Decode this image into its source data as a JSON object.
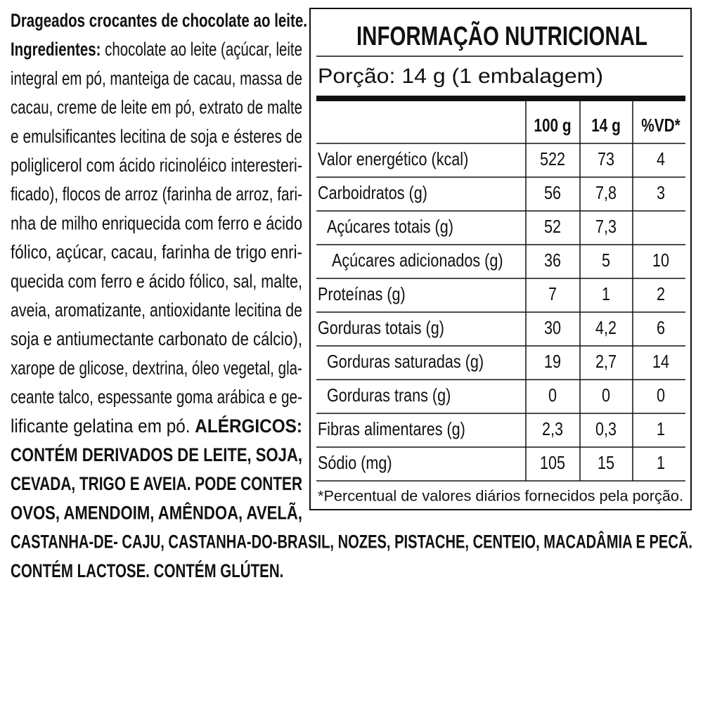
{
  "ingredients": {
    "lines": [
      {
        "segments": [
          {
            "text": "Drageados crocantes de chocolate ao leite.",
            "bold": true
          }
        ]
      },
      {
        "segments": [
          {
            "text": "Ingredientes:",
            "bold": true
          },
          {
            "text": " chocolate ao leite (açúcar, leite",
            "bold": false
          }
        ]
      },
      {
        "segments": [
          {
            "text": "integral em pó, manteiga de cacau, massa de",
            "bold": false
          }
        ]
      },
      {
        "segments": [
          {
            "text": "cacau, creme de leite em pó, extrato de malte",
            "bold": false
          }
        ]
      },
      {
        "segments": [
          {
            "text": "e emulsificantes lecitina de soja e ésteres de",
            "bold": false
          }
        ]
      },
      {
        "segments": [
          {
            "text": "poliglicerol com ácido ricinoléico interesteri-",
            "bold": false
          }
        ]
      },
      {
        "segments": [
          {
            "text": "ficado), flocos de arroz (farinha de arroz, fari-",
            "bold": false
          }
        ]
      },
      {
        "segments": [
          {
            "text": "nha de milho enriquecida com ferro e ácido",
            "bold": false
          }
        ]
      },
      {
        "segments": [
          {
            "text": "fólico, açúcar, cacau, farinha de trigo enri-",
            "bold": false
          }
        ]
      },
      {
        "segments": [
          {
            "text": "quecida com ferro e ácido fólico, sal, malte,",
            "bold": false
          }
        ]
      },
      {
        "segments": [
          {
            "text": "aveia, aromatizante, antioxidante lecitina de",
            "bold": false
          }
        ]
      },
      {
        "segments": [
          {
            "text": "soja e antiumectante carbonato de cálcio),",
            "bold": false
          }
        ]
      },
      {
        "segments": [
          {
            "text": "xarope de glicose, dextrina, óleo vegetal, gla-",
            "bold": false
          }
        ]
      },
      {
        "segments": [
          {
            "text": "ceante talco, espessante goma arábica e ge-",
            "bold": false
          }
        ]
      },
      {
        "segments": [
          {
            "text": "lificante gelatina em pó. ",
            "bold": false
          },
          {
            "text": "ALÉRGICOS:",
            "bold": true
          }
        ]
      },
      {
        "segments": [
          {
            "text": "CONTÉM DERIVADOS DE LEITE, SOJA,",
            "bold": true
          }
        ]
      },
      {
        "segments": [
          {
            "text": "CEVADA, TRIGO E AVEIA. PODE CONTER",
            "bold": true
          }
        ]
      },
      {
        "segments": [
          {
            "text": "OVOS, AMENDOIM, AMÊNDOA, AVELÃ,",
            "bold": true
          }
        ]
      },
      {
        "segments": [
          {
            "text": "CASTANHA-DE- CAJU, CASTANHA-DO-BRASIL, NOZES, PISTACHE, CENTEIO, MACADÂMIA E PECÃ.",
            "bold": true
          }
        ]
      },
      {
        "segments": [
          {
            "text": "CONTÉM LACTOSE. CONTÉM GLÚTEN.",
            "bold": true
          }
        ]
      }
    ]
  },
  "table": {
    "title": "INFORMAÇÃO NUTRICIONAL",
    "portion": "Porção: 14 g (1 embalagem)",
    "header": [
      "100 g",
      "14 g",
      "%VD*"
    ],
    "rows": [
      {
        "label": "Valor energético (kcal)",
        "level": 0,
        "values": [
          "522",
          "73",
          "4"
        ]
      },
      {
        "label": "Carboidratos (g)",
        "level": 0,
        "values": [
          "56",
          "7,8",
          "3"
        ]
      },
      {
        "label": "Açúcares totais (g)",
        "level": 1,
        "values": [
          "52",
          "7,3",
          null
        ]
      },
      {
        "label": "Açúcares adicionados (g)",
        "level": 2,
        "values": [
          "36",
          "5",
          "10"
        ]
      },
      {
        "label": "Proteínas (g)",
        "level": 0,
        "values": [
          "7",
          "1",
          "2"
        ]
      },
      {
        "label": "Gorduras totais (g)",
        "level": 0,
        "values": [
          "30",
          "4,2",
          "6"
        ]
      },
      {
        "label": "Gorduras saturadas (g)",
        "level": 1,
        "values": [
          "19",
          "2,7",
          "14"
        ]
      },
      {
        "label": "Gorduras trans (g)",
        "level": 1,
        "values": [
          "0",
          "0",
          "0"
        ]
      },
      {
        "label": "Fibras alimentares (g)",
        "level": 0,
        "values": [
          "2,3",
          "0,3",
          "1"
        ]
      },
      {
        "label": "Sódio (mg)",
        "level": 0,
        "values": [
          "105",
          "15",
          "1"
        ]
      }
    ],
    "footnote": "*Percentual de valores diários fornecidos pela porção."
  }
}
